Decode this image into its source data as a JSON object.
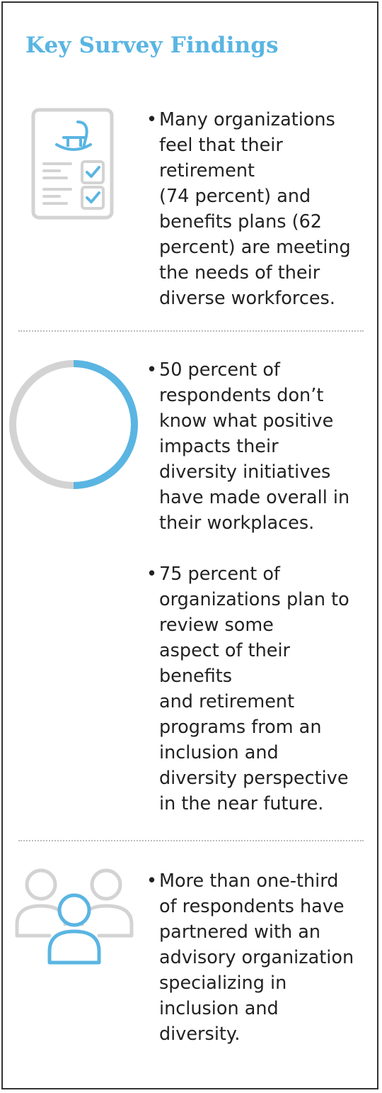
{
  "title": "Key Survey Findings",
  "colors": {
    "accent": "#5ab5e2",
    "icon_gray": "#d3d3d3",
    "text": "#222222"
  },
  "findings": [
    {
      "icon": "retirement-checklist-icon",
      "bullet": "•",
      "lines": [
        "Many organizations",
        "feel that their",
        "retirement",
        "(74 percent) and",
        "benefits plans (62",
        "percent) are meeting",
        "the needs of their",
        "diverse workforces."
      ]
    },
    {
      "icon": "half-donut-icon",
      "icon_fill_fraction": 0.5,
      "bullet": "•",
      "lines": [
        "50 percent of",
        "respondents don’t",
        "know what positive",
        "impacts their",
        "diversity initiatives",
        "have made overall in",
        "their workplaces."
      ]
    },
    {
      "bullet": "•",
      "lines": [
        "75 percent of",
        "organizations plan to",
        "review some",
        "aspect of their",
        "benefits",
        "and retirement",
        "programs from an",
        "inclusion and",
        "diversity perspective",
        "in the near future."
      ]
    },
    {
      "icon": "people-group-icon",
      "bullet": "•",
      "lines": [
        "More than one-third",
        "of respondents have",
        "partnered with an",
        "advisory organization",
        "specializing in",
        "inclusion and",
        "diversity."
      ]
    }
  ]
}
